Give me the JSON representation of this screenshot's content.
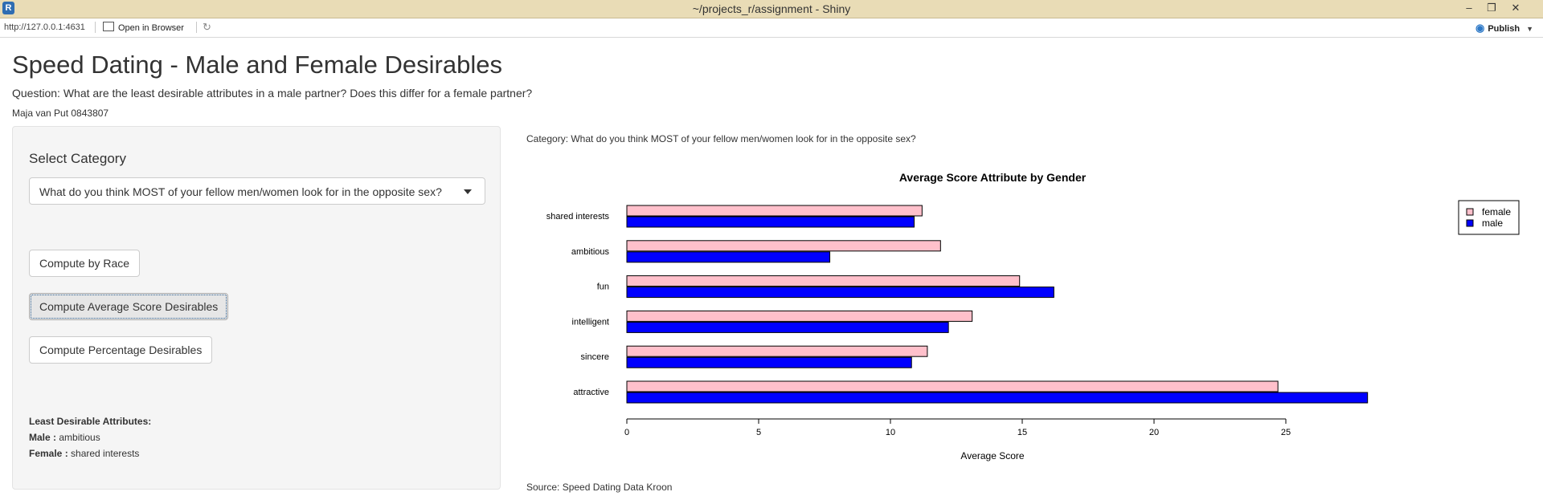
{
  "window": {
    "title": "~/projects_r/assignment - Shiny",
    "minimize": "–",
    "restore": "❐",
    "close": "✕"
  },
  "toolbar": {
    "url": "http://127.0.0.1:4631",
    "open_in_browser": "Open in Browser",
    "refresh_icon": "↻",
    "publish": "Publish",
    "publish_icon": "◉",
    "publish_caret": "▼"
  },
  "page": {
    "title": "Speed Dating - Male and Female Desirables",
    "question": "Question: What are the least desirable attributes in a male partner? Does this differ for a female partner?",
    "author": "Maja van Put 0843807"
  },
  "sidebar": {
    "select_label": "Select Category",
    "select_value": "What do you think MOST of your fellow men/women look for in the opposite sex?",
    "buttons": {
      "race": "Compute by Race",
      "average": "Compute Average Score Desirables",
      "percentage": "Compute Percentage Desirables"
    },
    "least": {
      "heading": "Least Desirable Attributes:",
      "male_label": "Male :",
      "male_value": "ambitious",
      "female_label": "Female :",
      "female_value": "shared interests"
    }
  },
  "main": {
    "category": "Category: What do you think MOST of your fellow men/women look for in the opposite sex?",
    "source": "Source: Speed Dating Data Kroon"
  },
  "colors": {
    "female": "#ffc0cb",
    "male": "#0000ff"
  },
  "chart_data": {
    "type": "bar",
    "orientation": "horizontal",
    "title": "Average Score Attribute by Gender",
    "xlabel": "Average Score",
    "ylabel": "",
    "categories": [
      "attractive",
      "sincere",
      "intelligent",
      "fun",
      "ambitious",
      "shared interests"
    ],
    "series": [
      {
        "name": "female",
        "values": [
          24.7,
          11.4,
          13.1,
          14.9,
          11.9,
          11.2
        ]
      },
      {
        "name": "male",
        "values": [
          28.1,
          10.8,
          12.2,
          16.2,
          7.7,
          10.9
        ]
      }
    ],
    "xlim": [
      0,
      28.5
    ],
    "xticks": [
      0,
      5,
      10,
      15,
      20,
      25
    ],
    "legend": {
      "position": "top-right",
      "entries": [
        "female",
        "male"
      ]
    }
  }
}
